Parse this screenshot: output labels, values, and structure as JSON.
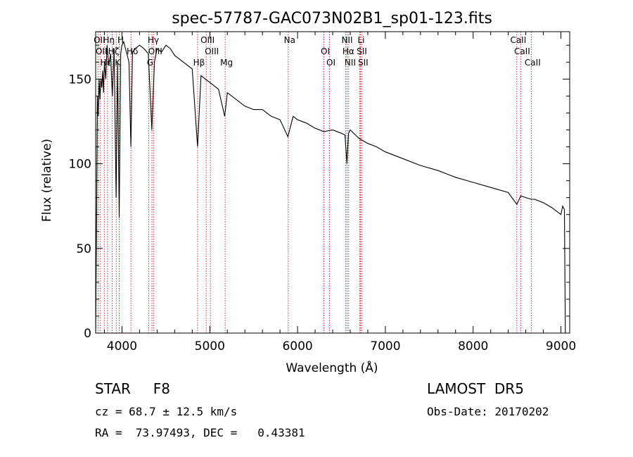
{
  "chart_data": {
    "type": "line",
    "title": "spec-57787-GAC073N02B1_sp01-123.fits",
    "xlabel": "Wavelength (Å)",
    "ylabel": "Flux (relative)",
    "xlim": [
      3700,
      9100
    ],
    "ylim": [
      0,
      178
    ],
    "x_ticks": [
      4000,
      5000,
      6000,
      7000,
      8000,
      9000
    ],
    "y_ticks": [
      0,
      50,
      100,
      150
    ],
    "series": [
      {
        "x": [
          3700,
          3710,
          3720,
          3730,
          3740,
          3750,
          3760,
          3770,
          3780,
          3790,
          3800,
          3815,
          3830,
          3850,
          3870,
          3890,
          3910,
          3933,
          3950,
          3968,
          3985,
          4000,
          4020,
          4050,
          4080,
          4101,
          4120,
          4150,
          4200,
          4250,
          4300,
          4340,
          4370,
          4400,
          4450,
          4500,
          4550,
          4600,
          4700,
          4800,
          4861,
          4900,
          4950,
          5000,
          5050,
          5100,
          5170,
          5200,
          5300,
          5400,
          5500,
          5600,
          5700,
          5800,
          5890,
          5950,
          6000,
          6100,
          6200,
          6300,
          6400,
          6500,
          6540,
          6563,
          6580,
          6600,
          6700,
          6800,
          6900,
          7000,
          7200,
          7400,
          7600,
          7800,
          8000,
          8200,
          8400,
          8498,
          8542,
          8600,
          8662,
          8700,
          8800,
          8900,
          8950,
          9000,
          9020,
          9040,
          9050,
          9055,
          9060,
          9070
        ],
        "y": [
          0,
          60,
          140,
          128,
          150,
          138,
          150,
          145,
          155,
          142,
          160,
          150,
          170,
          158,
          165,
          140,
          168,
          80,
          160,
          68,
          165,
          170,
          172,
          166,
          160,
          110,
          166,
          168,
          170,
          168,
          165,
          120,
          160,
          168,
          166,
          170,
          168,
          164,
          160,
          156,
          110,
          152,
          150,
          148,
          146,
          144,
          128,
          142,
          138,
          134,
          132,
          132,
          128,
          126,
          116,
          128,
          126,
          124,
          121,
          119,
          120,
          118,
          117,
          100,
          118,
          120,
          115,
          112,
          110,
          107,
          103,
          99,
          96,
          92,
          89,
          86,
          83,
          76,
          81,
          80,
          79,
          79,
          77,
          74,
          72,
          70,
          75,
          73,
          0,
          0,
          0,
          0
        ]
      }
    ],
    "spectral_lines": [
      {
        "wl": 3727,
        "label": "OII"
      },
      {
        "wl": 3750,
        "label": "OII"
      },
      {
        "wl": 3798,
        "label": "Hε"
      },
      {
        "wl": 3835,
        "label": "Hη"
      },
      {
        "wl": 3889,
        "label": "Hζ"
      },
      {
        "wl": 3934,
        "label": "K"
      },
      {
        "wl": 3969,
        "label": "H"
      },
      {
        "wl": 4102,
        "label": "Hδ"
      },
      {
        "wl": 4304,
        "label": "G"
      },
      {
        "wl": 4341,
        "label": "Hγ"
      },
      {
        "wl": 4363,
        "label": "OIII"
      },
      {
        "wl": 4861,
        "label": "Hβ"
      },
      {
        "wl": 4959,
        "label": "OIII"
      },
      {
        "wl": 5007,
        "label": "OIII"
      },
      {
        "wl": 5175,
        "label": "Mg"
      },
      {
        "wl": 5894,
        "label": "Na"
      },
      {
        "wl": 6300,
        "label": "OI"
      },
      {
        "wl": 6364,
        "label": "OI"
      },
      {
        "wl": 6548,
        "label": "NII"
      },
      {
        "wl": 6563,
        "label": "Hα"
      },
      {
        "wl": 6583,
        "label": "NII"
      },
      {
        "wl": 6708,
        "label": "Li"
      },
      {
        "wl": 6716,
        "label": "SII"
      },
      {
        "wl": 6731,
        "label": "SII"
      },
      {
        "wl": 8498,
        "label": "CaII"
      },
      {
        "wl": 8542,
        "label": "CaII"
      },
      {
        "wl": 8662,
        "label": "CaII"
      }
    ],
    "line_color": "#000000",
    "marker_color": "#cc0000"
  },
  "info": {
    "star": "STAR     F8",
    "survey": "LAMOST  DR5",
    "cz": "cz = 68.7 ± 12.5 km/s",
    "obs": "Obs-Date: 20170202",
    "radec": "RA =  73.97493, DEC =   0.43381"
  }
}
